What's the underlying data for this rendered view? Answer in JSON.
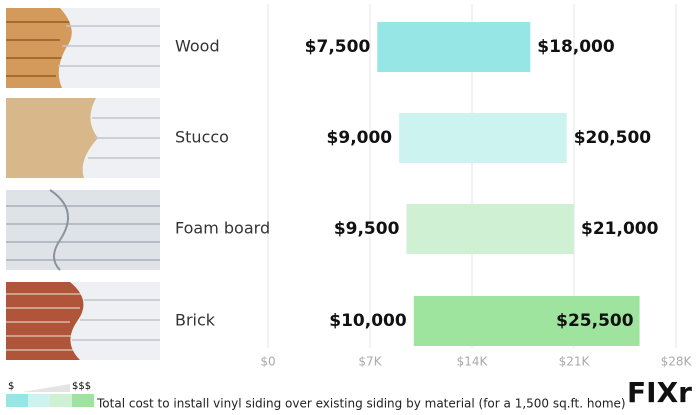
{
  "chart_data": {
    "type": "floating-bar",
    "categories": [
      "Wood",
      "Stucco",
      "Foam board",
      "Brick"
    ],
    "low": {
      "values": [
        7500,
        9000,
        9500,
        10000
      ],
      "value_labels": [
        "$7,500",
        "$9,000",
        "$9,500",
        "$10,000"
      ]
    },
    "high": {
      "values": [
        18000,
        20500,
        21000,
        25500
      ],
      "value_labels": [
        "$18,000",
        "$20,500",
        "$21,000",
        "$25,500"
      ]
    },
    "colors": [
      "#96e6e6",
      "#cdf3f1",
      "#d0f0d3",
      "#9ee39e"
    ],
    "xlim": [
      0,
      28000
    ],
    "xticks": [
      {
        "value": 0,
        "label": "$0"
      },
      {
        "value": 7000,
        "label": "$7K"
      },
      {
        "value": 14000,
        "label": "$14K"
      },
      {
        "value": 21000,
        "label": "$21K"
      },
      {
        "value": 28000,
        "label": "$28K"
      }
    ],
    "grid": true,
    "legend": {
      "low": "$",
      "high": "$$$",
      "caption": "Total cost to install vinyl siding over existing siding by material (for a 1,500 sq.ft. home)"
    },
    "logo": "FIXr"
  }
}
